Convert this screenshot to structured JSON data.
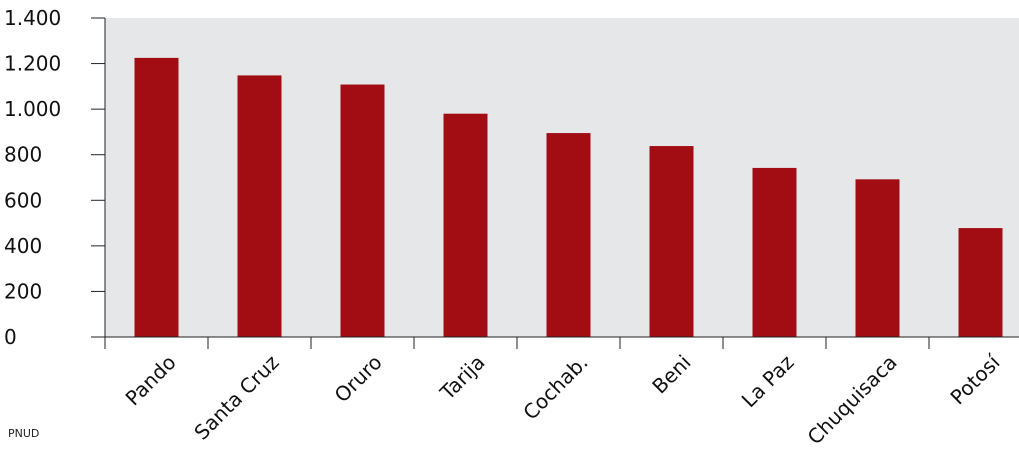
{
  "chart_data": {
    "type": "bar",
    "categories": [
      "Pando",
      "Santa Cruz",
      "Oruro",
      "Tarija",
      "Cochab.",
      "Beni",
      "La Paz",
      "Chuquisaca",
      "Potosí"
    ],
    "values": [
      1225,
      1148,
      1108,
      980,
      895,
      838,
      742,
      692,
      478
    ],
    "title": "",
    "xlabel": "",
    "ylabel": "",
    "ylim": [
      0,
      1400
    ],
    "yticks": [
      0,
      200,
      400,
      600,
      800,
      1000,
      1200,
      1400
    ],
    "ytick_labels": [
      "0",
      "200",
      "400",
      "600",
      "800",
      "1.000",
      "1.200",
      "1.400"
    ],
    "grid": false,
    "bar_color": "#a20c13",
    "plot_background": "#e6e7e8"
  },
  "source": "PNUD"
}
